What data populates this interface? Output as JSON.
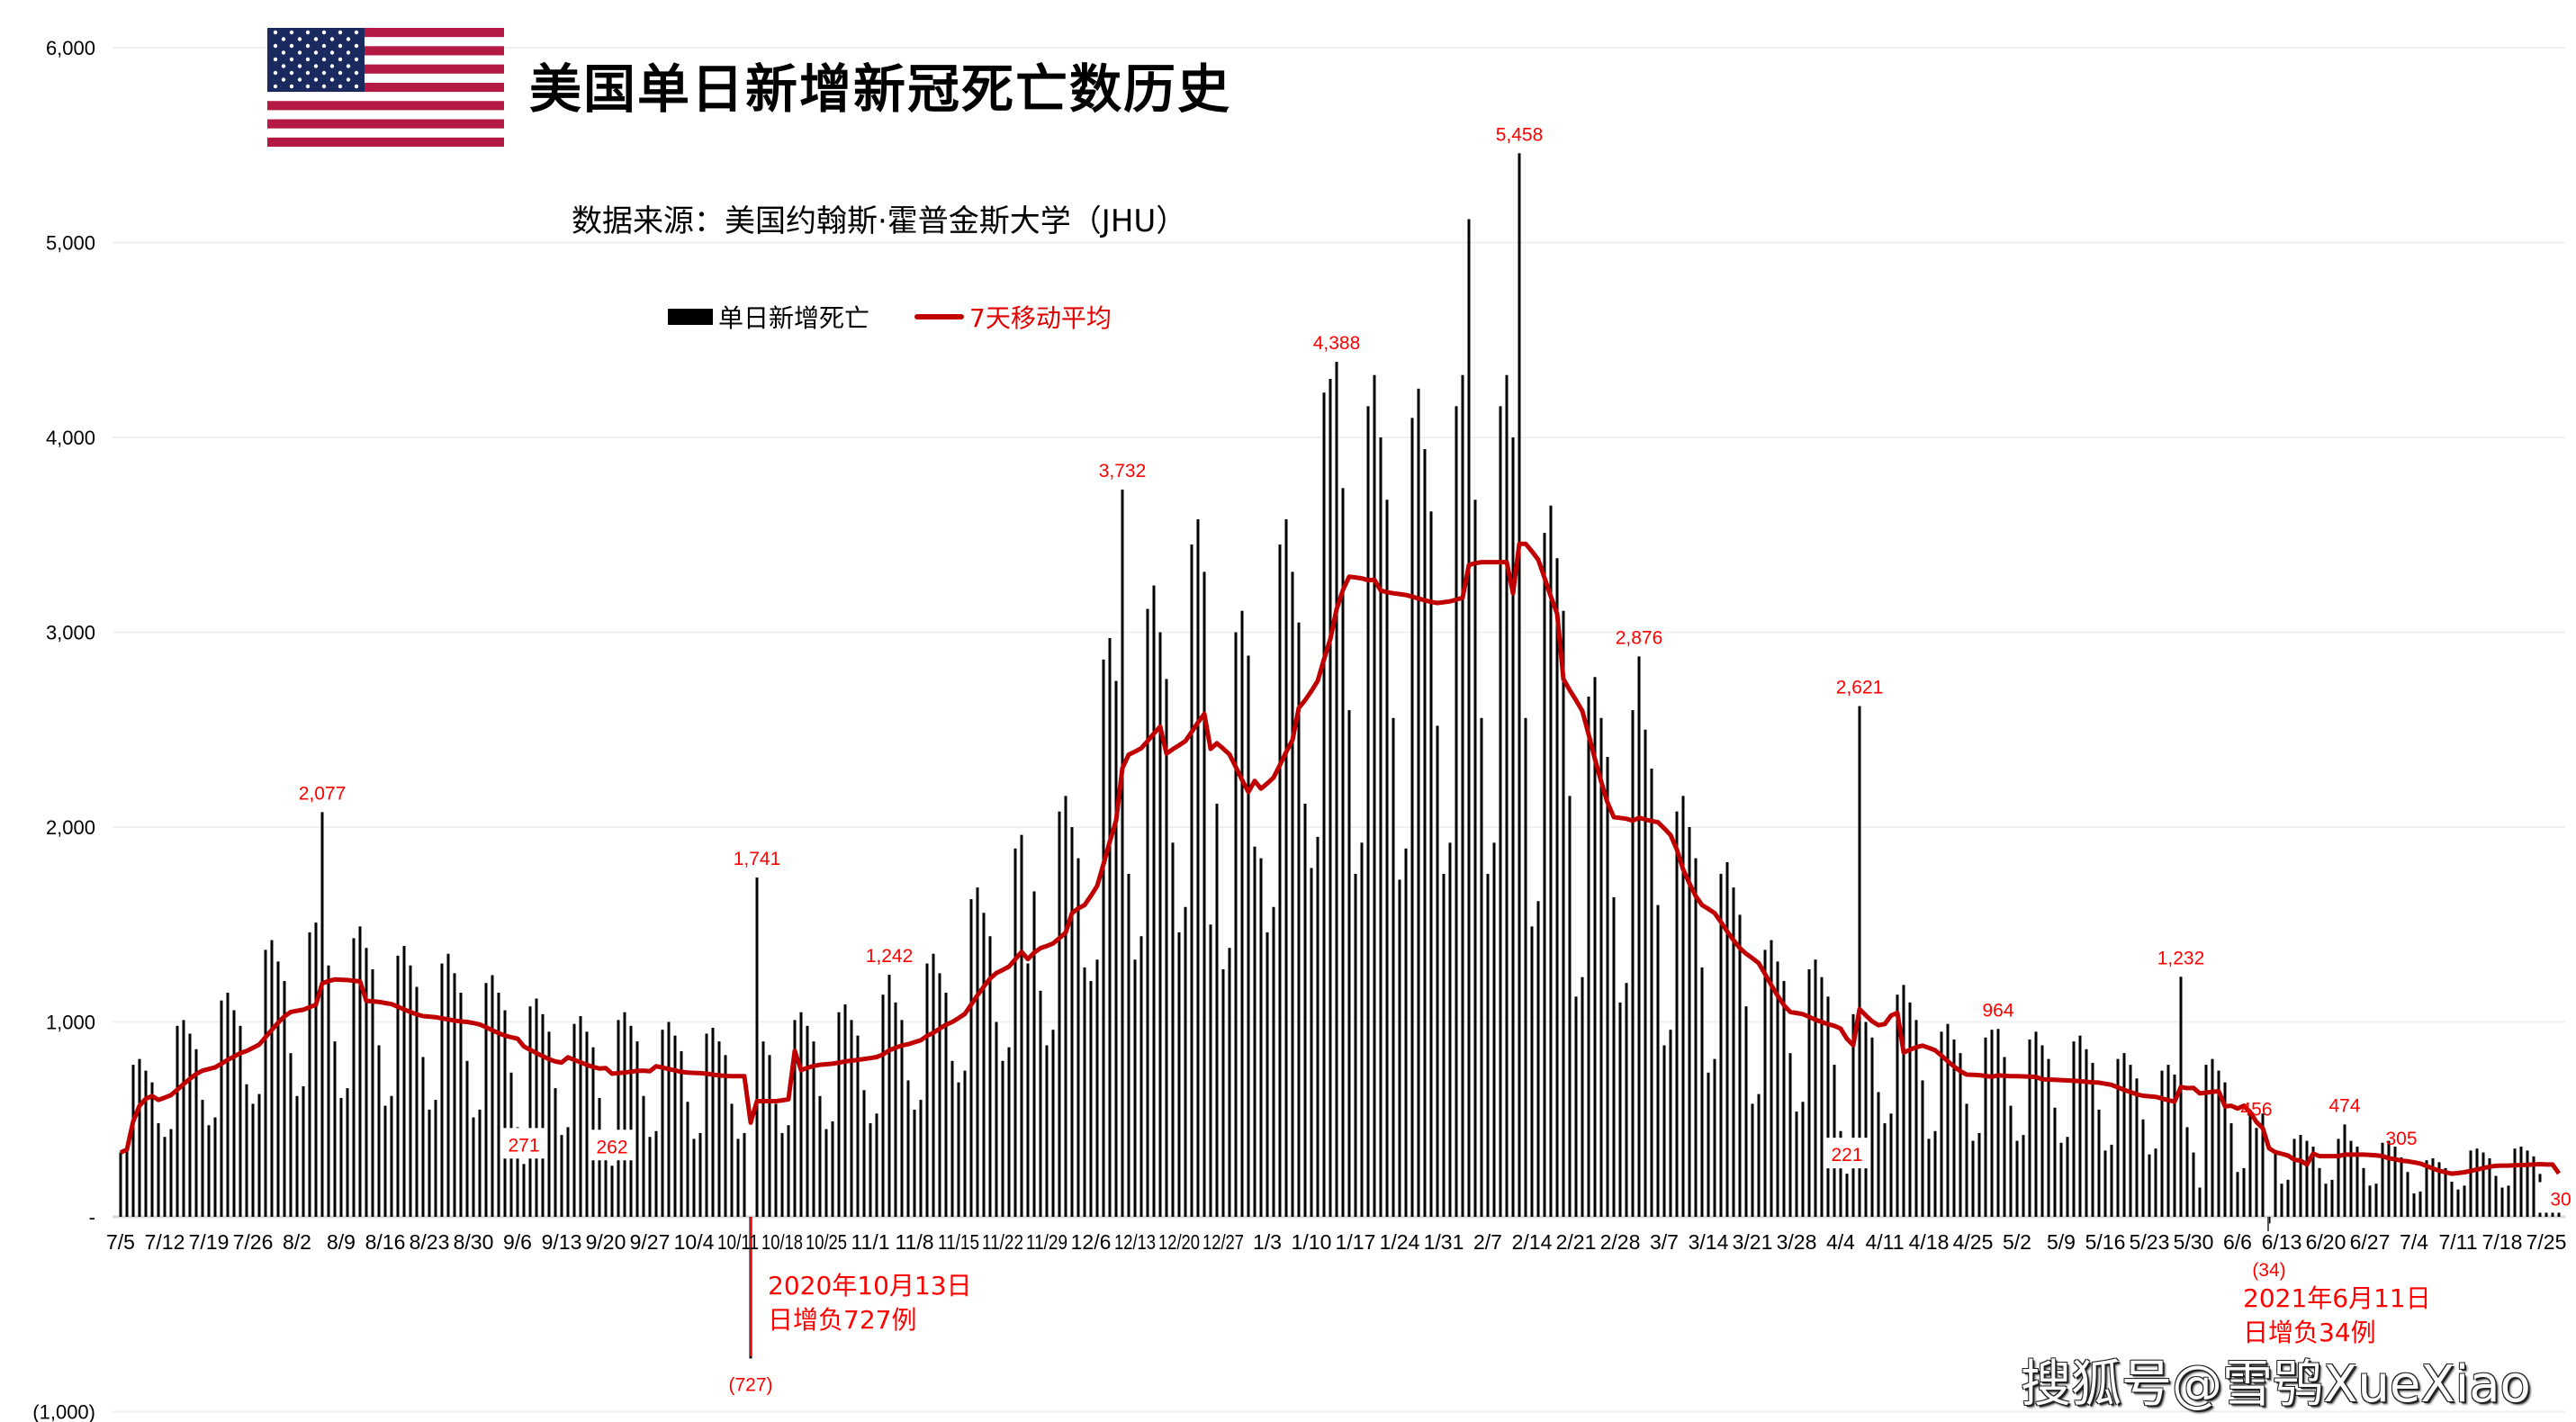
{
  "header": {
    "title": "美国单日新增新冠死亡数历史",
    "subtitle": "数据来源：美国约翰斯·霍普金斯大学（JHU）",
    "flag_icon": "us-flag-icon"
  },
  "legend": {
    "bars_label": "单日新增死亡",
    "line_label": "7天移动平均"
  },
  "annotations": {
    "note1_line1": "2020年10月13日",
    "note1_line2": "日增负727例",
    "note2_line1": "2021年6月11日",
    "note2_line2": "日增负34例"
  },
  "watermark": "搜狐号@雪鸮XueXiao",
  "colors": {
    "bars": "#000000",
    "line": "#c00000",
    "labels": "#ff0000",
    "grid": "#f0f0f0"
  },
  "chart_data": {
    "type": "bar",
    "start_date": "2020-07-05",
    "ylim": [
      -1000,
      6000
    ],
    "y_ticks": [
      {
        "value": 6000,
        "label": "6,000"
      },
      {
        "value": 5000,
        "label": "5,000"
      },
      {
        "value": 4000,
        "label": "4,000"
      },
      {
        "value": 3000,
        "label": "3,000"
      },
      {
        "value": 2000,
        "label": "2,000"
      },
      {
        "value": 1000,
        "label": "1,000"
      },
      {
        "value": 0,
        "label": "-"
      },
      {
        "value": -1000,
        "label": "(1,000)"
      }
    ],
    "grid": true,
    "legend_position": "top-center",
    "x_tick_labels": [
      "7/5",
      "7/12",
      "7/19",
      "7/26",
      "8/2",
      "8/9",
      "8/16",
      "8/23",
      "8/30",
      "9/6",
      "9/13",
      "9/20",
      "9/27",
      "10/4",
      "10/11",
      "10/18",
      "10/25",
      "11/1",
      "11/8",
      "11/15",
      "11/22",
      "11/29",
      "12/6",
      "12/13",
      "12/20",
      "12/27",
      "1/3",
      "1/10",
      "1/17",
      "1/24",
      "1/31",
      "2/7",
      "2/14",
      "2/21",
      "2/28",
      "3/7",
      "3/14",
      "3/21",
      "3/28",
      "4/4",
      "4/11",
      "4/18",
      "4/25",
      "5/2",
      "5/9",
      "5/16",
      "5/23",
      "5/30",
      "6/6",
      "6/13",
      "6/20",
      "6/27",
      "7/4",
      "7/11",
      "7/18",
      "7/25"
    ],
    "series": [
      {
        "name": "单日新增死亡",
        "type": "bar",
        "values": [
          330,
          360,
          780,
          810,
          750,
          690,
          480,
          410,
          450,
          980,
          1010,
          940,
          860,
          600,
          470,
          510,
          1110,
          1150,
          1060,
          980,
          680,
          580,
          630,
          1370,
          1420,
          1310,
          1210,
          840,
          620,
          670,
          1460,
          1510,
          2077,
          1290,
          900,
          610,
          660,
          1430,
          1490,
          1380,
          1270,
          880,
          570,
          620,
          1340,
          1390,
          1290,
          1180,
          820,
          550,
          600,
          1300,
          1350,
          1250,
          1150,
          800,
          510,
          550,
          1200,
          1240,
          1150,
          1060,
          740,
          460,
          271,
          1080,
          1120,
          1040,
          950,
          660,
          420,
          460,
          990,
          1030,
          950,
          870,
          610,
          430,
          262,
          1010,
          1050,
          980,
          900,
          620,
          410,
          440,
          960,
          1000,
          930,
          850,
          590,
          400,
          430,
          940,
          970,
          900,
          830,
          580,
          400,
          430,
          -727,
          1741,
          900,
          830,
          580,
          430,
          470,
          1010,
          1050,
          980,
          900,
          620,
          450,
          490,
          1050,
          1090,
          1010,
          930,
          650,
          480,
          530,
          1140,
          1242,
          1100,
          1010,
          700,
          550,
          600,
          1300,
          1350,
          1250,
          1150,
          800,
          690,
          750,
          1630,
          1690,
          1560,
          1440,
          1000,
          800,
          870,
          1890,
          1960,
          1300,
          1670,
          1160,
          880,
          960,
          2080,
          2160,
          2000,
          1840,
          1280,
          1210,
          1320,
          2860,
          2970,
          2750,
          3732,
          1760,
          1320,
          1440,
          3120,
          3240,
          3000,
          2760,
          1920,
          1460,
          1590,
          3450,
          3580,
          3310,
          1500,
          2120,
          1270,
          1380,
          3000,
          3110,
          2880,
          1900,
          1840,
          1460,
          1590,
          3450,
          3580,
          3310,
          3050,
          2120,
          1790,
          1950,
          4230,
          4300,
          4388,
          3740,
          2600,
          1760,
          1920,
          4160,
          4320,
          4000,
          3680,
          2560,
          1730,
          1890,
          4100,
          4250,
          3940,
          3620,
          2520,
          1760,
          1920,
          4160,
          4320,
          5120,
          3680,
          2560,
          1760,
          1920,
          4160,
          4320,
          4000,
          5458,
          2560,
          1490,
          1620,
          3510,
          3650,
          3380,
          3110,
          2160,
          1130,
          1230,
          2670,
          2770,
          2560,
          2360,
          1640,
          1100,
          1200,
          2600,
          2876,
          2500,
          2300,
          1600,
          880,
          960,
          2080,
          2160,
          2000,
          1840,
          1280,
          740,
          810,
          1760,
          1820,
          1690,
          1550,
          1080,
          580,
          630,
          1370,
          1420,
          1310,
          1210,
          840,
          540,
          590,
          1270,
          1320,
          1230,
          1130,
          780,
          440,
          221,
          1040,
          2621,
          1000,
          920,
          640,
          480,
          530,
          1140,
          1190,
          1100,
          1010,
          700,
          400,
          440,
          950,
          990,
          910,
          840,
          580,
          390,
          430,
          920,
          960,
          964,
          820,
          570,
          390,
          420,
          910,
          950,
          880,
          810,
          560,
          380,
          410,
          900,
          930,
          860,
          790,
          550,
          340,
          370,
          810,
          840,
          780,
          710,
          500,
          320,
          350,
          750,
          780,
          730,
          1232,
          460,
          330,
          150,
          780,
          810,
          750,
          690,
          480,
          230,
          250,
          550,
          456,
          530,
          -34,
          340,
          170,
          190,
          400,
          420,
          390,
          360,
          250,
          170,
          190,
          400,
          474,
          390,
          360,
          250,
          160,
          170,
          380,
          390,
          360,
          305,
          230,
          120,
          130,
          290,
          300,
          280,
          250,
          180,
          140,
          160,
          340,
          350,
          330,
          300,
          210,
          150,
          160,
          350,
          360,
          340,
          310,
          220,
          140,
          160,
          30
        ]
      },
      {
        "name": "7天移动平均",
        "type": "line",
        "window": 7
      }
    ],
    "value_labels": [
      {
        "date": "2020-08-06",
        "label": "2,077"
      },
      {
        "date": "2020-09-07",
        "label": "271"
      },
      {
        "date": "2020-09-21",
        "label": "262"
      },
      {
        "date": "2020-10-13",
        "label": "(727)"
      },
      {
        "date": "2020-10-14",
        "label": "1,741"
      },
      {
        "date": "2020-11-04",
        "label": "1,242"
      },
      {
        "date": "2020-12-11",
        "label": "3,732"
      },
      {
        "date": "2021-01-14",
        "label": "4,388"
      },
      {
        "date": "2021-02-12",
        "label": "5,458"
      },
      {
        "date": "2021-03-03",
        "label": "2,876"
      },
      {
        "date": "2021-04-05",
        "label": "221"
      },
      {
        "date": "2021-04-07",
        "label": "2,621"
      },
      {
        "date": "2021-04-29",
        "label": "964"
      },
      {
        "date": "2021-05-28",
        "label": "1,232"
      },
      {
        "date": "2021-06-09",
        "label": "456"
      },
      {
        "date": "2021-06-11",
        "label": "(34)"
      },
      {
        "date": "2021-06-23",
        "label": "474"
      },
      {
        "date": "2021-07-02",
        "label": "305"
      },
      {
        "date": "2021-07-27",
        "label": "30"
      }
    ]
  }
}
